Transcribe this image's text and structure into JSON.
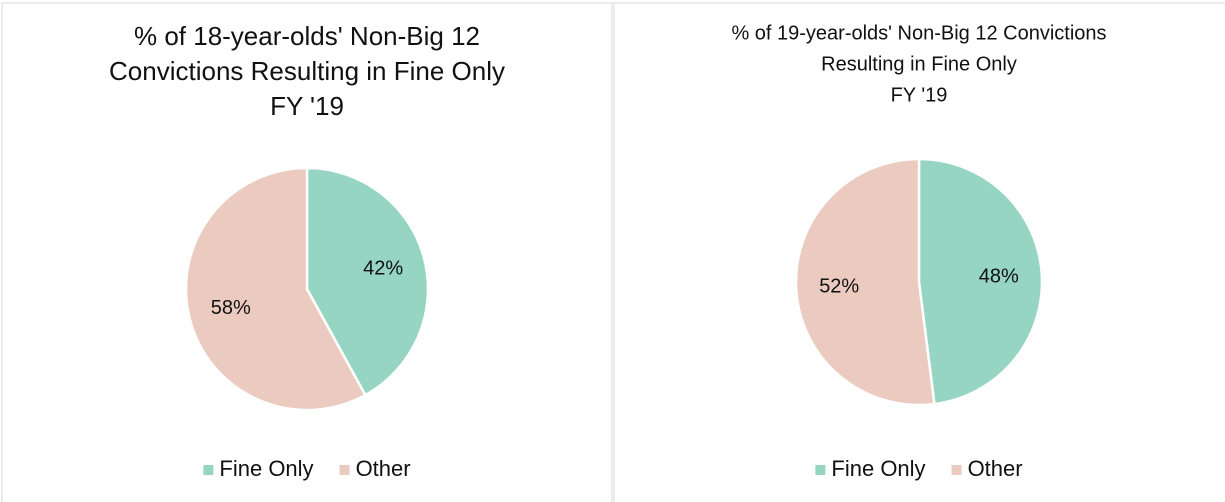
{
  "chart_data": [
    {
      "type": "pie",
      "title": [
        "% of 18-year-olds' Non-Big 12",
        "Convictions Resulting in Fine Only",
        "FY '19"
      ],
      "categories": [
        "Fine Only",
        "Other"
      ],
      "values": [
        42,
        58
      ],
      "value_labels": [
        "42%",
        "58%"
      ],
      "colors": [
        "#95d5c1",
        "#ebcbbf"
      ],
      "legend": "bottom"
    },
    {
      "type": "pie",
      "title": [
        "% of 19-year-olds' Non-Big 12 Convictions",
        "Resulting in Fine Only",
        "FY '19"
      ],
      "categories": [
        "Fine Only",
        "Other"
      ],
      "values": [
        48,
        52
      ],
      "value_labels": [
        "48%",
        "52%"
      ],
      "colors": [
        "#95d5c1",
        "#ebcbbf"
      ],
      "legend": "bottom"
    }
  ]
}
